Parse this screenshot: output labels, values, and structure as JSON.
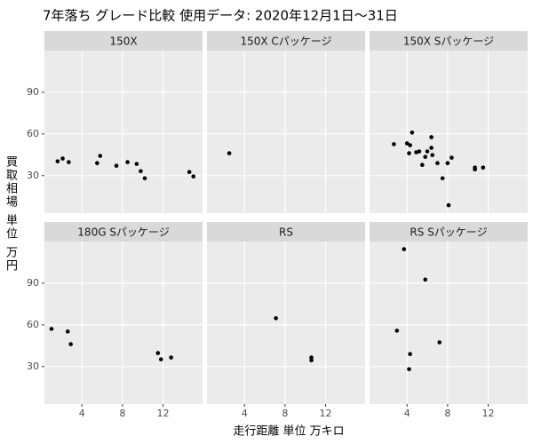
{
  "chart_data": {
    "type": "scatter",
    "title": "7年落ち グレード比較 使用データ: 2020年12月1日～31日",
    "x_label": "走行距離 単位 万キロ",
    "y_label": "買取相場 単位 万円",
    "xlim": [
      0.3,
      15.9
    ],
    "ylim": [
      3,
      120
    ],
    "xticks": [
      4,
      8,
      12
    ],
    "yticks": [
      30,
      60,
      90
    ],
    "grid": true,
    "color": "#000000",
    "panels": [
      {
        "name": "150X",
        "x": [
          1.6,
          2.1,
          2.7,
          5.5,
          5.8,
          7.4,
          8.5,
          9.4,
          9.8,
          10.2,
          14.6,
          15.0
        ],
        "y": [
          40.3,
          42.3,
          39.7,
          39,
          44.2,
          37.1,
          39.7,
          38.4,
          33.2,
          28.1,
          32.6,
          29.4
        ]
      },
      {
        "name": "150X  Cパッケージ",
        "x": [
          2.5
        ],
        "y": [
          46.1
        ]
      },
      {
        "name": "150X  Sパッケージ",
        "x": [
          2.7,
          4.0,
          4.3,
          4.2,
          4.5,
          4.9,
          5.2,
          5.5,
          5.8,
          6.0,
          6.4,
          6.4,
          6.5,
          7.0,
          7.5,
          8.0,
          8.4,
          8.1,
          10.7,
          10.7,
          11.5
        ],
        "y": [
          52.6,
          53.2,
          51.9,
          46.1,
          61,
          46.8,
          47.4,
          37.7,
          43.5,
          47.4,
          57.7,
          50,
          44.8,
          39,
          28.1,
          39,
          42.9,
          8.7,
          35.8,
          34.5,
          35.8
        ]
      },
      {
        "name": "180G  Sパッケージ",
        "x": [
          1.0,
          2.6,
          2.9,
          11.5,
          11.8,
          12.8
        ],
        "y": [
          57.1,
          55.2,
          46.1,
          39.7,
          35.2,
          36.5
        ]
      },
      {
        "name": "RS",
        "x": [
          7.1,
          10.6,
          10.6
        ],
        "y": [
          64.8,
          36.5,
          34.5
        ]
      },
      {
        "name": "RS  Sパッケージ",
        "x": [
          3.7,
          3.0,
          5.8,
          4.3,
          4.2,
          7.2
        ],
        "y": [
          114.5,
          55.8,
          92.6,
          39,
          28.1,
          47.4
        ]
      }
    ]
  }
}
